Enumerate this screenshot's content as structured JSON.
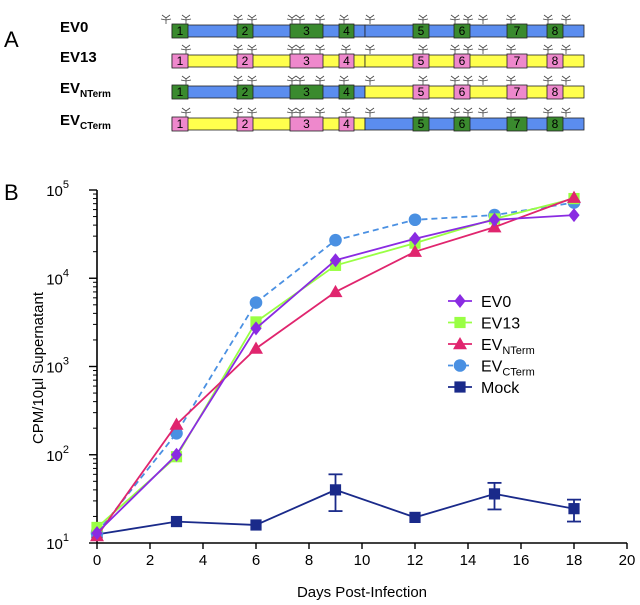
{
  "panel_a": {
    "letter": "A",
    "colors": {
      "ev0": "#5b8def",
      "ev13": "#ffff4d",
      "ev0_segment": "#3a8a2e",
      "ev13_segment": "#ee88cc"
    },
    "constructs": [
      {
        "name": "EV0",
        "sub": "",
        "backbone": [
          "ev0",
          "ev0"
        ],
        "segments": [
          "ev0",
          "ev0",
          "ev0",
          "ev0",
          "ev0",
          "ev0",
          "ev0",
          "ev0"
        ],
        "labels": [
          "1",
          "2",
          "3",
          "4",
          "5",
          "6",
          "7",
          "8"
        ]
      },
      {
        "name": "EV13",
        "sub": "",
        "backbone": [
          "ev13",
          "ev13"
        ],
        "segments": [
          "ev13",
          "ev13",
          "ev13",
          "ev13",
          "ev13",
          "ev13",
          "ev13",
          "ev13"
        ],
        "labels": [
          "1",
          "2",
          "3",
          "4",
          "5",
          "6",
          "7",
          "8"
        ]
      },
      {
        "name": "EV",
        "sub": "NTerm",
        "backbone": [
          "ev0",
          "ev13"
        ],
        "segments": [
          "ev0",
          "ev0",
          "ev0",
          "ev0",
          "ev13",
          "ev13",
          "ev13",
          "ev13"
        ],
        "labels": [
          "1",
          "2",
          "3",
          "4",
          "5",
          "6",
          "7",
          "8"
        ]
      },
      {
        "name": "EV",
        "sub": "CTerm",
        "backbone": [
          "ev13",
          "ev0"
        ],
        "segments": [
          "ev13",
          "ev13",
          "ev13",
          "ev13",
          "ev0",
          "ev0",
          "ev0",
          "ev0"
        ],
        "labels": [
          "1",
          "2",
          "3",
          "4",
          "5",
          "6",
          "7",
          "8"
        ]
      }
    ]
  },
  "panel_b": {
    "letter": "B"
  },
  "chart_data": {
    "type": "line",
    "title": "",
    "xlabel": "Days Post-Infection",
    "ylabel": "CPM/10µl Supernatant",
    "xlim": [
      0,
      20
    ],
    "ylim": [
      10,
      100000
    ],
    "y_scale": "log",
    "x_ticks": [
      "0",
      "2",
      "4",
      "6",
      "8",
      "10",
      "12",
      "14",
      "16",
      "18",
      "20"
    ],
    "y_ticks": [
      {
        "base": "10",
        "exp": "1"
      },
      {
        "base": "10",
        "exp": "2"
      },
      {
        "base": "10",
        "exp": "3"
      },
      {
        "base": "10",
        "exp": "4"
      },
      {
        "base": "10",
        "exp": "5"
      }
    ],
    "grid": false,
    "legend_position": "right",
    "series": [
      {
        "name": "EV0",
        "sub": "",
        "color": "#8a2be2",
        "marker": "diamond",
        "dash": false,
        "x": [
          0,
          3,
          6,
          9,
          12,
          15,
          18
        ],
        "y": [
          13,
          100,
          2700,
          16000,
          28000,
          46000,
          52000
        ]
      },
      {
        "name": "EV13",
        "sub": "",
        "color": "#99ff44",
        "marker": "square",
        "dash": false,
        "x": [
          0,
          3,
          6,
          9,
          12,
          15,
          18
        ],
        "y": [
          15,
          95,
          3200,
          14000,
          25000,
          47000,
          80000
        ]
      },
      {
        "name": "EV",
        "sub": "NTerm",
        "color": "#e0256e",
        "marker": "triangle",
        "dash": false,
        "x": [
          0,
          3,
          6,
          9,
          12,
          15,
          18
        ],
        "y": [
          12,
          220,
          1600,
          7000,
          20000,
          38000,
          82000
        ]
      },
      {
        "name": "EV",
        "sub": "CTerm",
        "color": "#4a90e2",
        "marker": "circle",
        "dash": true,
        "x": [
          0,
          3,
          6,
          9,
          12,
          15,
          18
        ],
        "y": [
          13,
          175,
          5300,
          27000,
          46000,
          52000,
          72000
        ]
      },
      {
        "name": "Mock",
        "sub": "",
        "color": "#1a2a8a",
        "marker": "square",
        "dash": false,
        "x": [
          0,
          3,
          6,
          9,
          12,
          15,
          18
        ],
        "y": [
          12.5,
          17.5,
          16,
          40,
          19.5,
          36,
          24.5
        ],
        "err_low": [
          null,
          null,
          null,
          23,
          null,
          24,
          17.5
        ],
        "err_high": [
          null,
          null,
          null,
          60,
          null,
          48,
          31
        ]
      }
    ]
  }
}
